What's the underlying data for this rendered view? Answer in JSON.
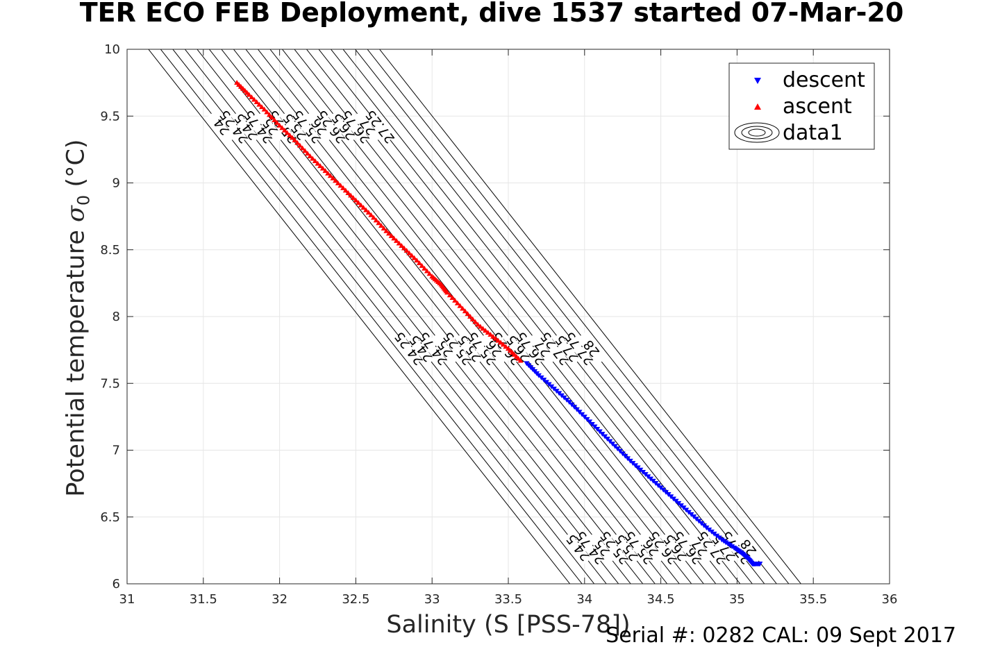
{
  "title": "TER ECO FEB Deployment, dive 1537 started 07-Mar-20",
  "footer": "Serial #: 0282  CAL: 09 Sept 2017",
  "chart_data": {
    "type": "scatter",
    "xlabel": "Salinity (S [PSS-78])",
    "ylabel_main": "Potential temperature ",
    "ylabel_symbol": "σ",
    "ylabel_sub": "0",
    "ylabel_unit": " (°C)",
    "xlim": [
      31,
      36
    ],
    "ylim": [
      6,
      10
    ],
    "xticks": [
      "31",
      "31.5",
      "32",
      "32.5",
      "33",
      "33.5",
      "34",
      "34.5",
      "35",
      "35.5",
      "36"
    ],
    "yticks": [
      "6",
      "6.5",
      "7",
      "7.5",
      "8",
      "8.5",
      "9",
      "9.5",
      "10"
    ],
    "grid": true,
    "legend": {
      "placement": "top-right",
      "entries": [
        "descent",
        "ascent",
        "data1"
      ]
    },
    "colors": {
      "descent": "#0000ff",
      "ascent": "#ff0000",
      "contour": "#000000",
      "grid": "#e6e6e6"
    },
    "series": [
      {
        "name": "descent",
        "marker": "triangle-down",
        "color": "#0000ff",
        "x": [
          33.62,
          33.7,
          33.8,
          33.9,
          34.0,
          34.1,
          34.2,
          34.3,
          34.4,
          34.5,
          34.6,
          34.7,
          34.8,
          34.9,
          34.98,
          35.03,
          35.07,
          35.1,
          35.12,
          35.15
        ],
        "y": [
          7.65,
          7.56,
          7.46,
          7.36,
          7.25,
          7.14,
          7.03,
          6.92,
          6.82,
          6.72,
          6.62,
          6.52,
          6.42,
          6.33,
          6.27,
          6.23,
          6.19,
          6.15,
          6.15,
          6.15
        ]
      },
      {
        "name": "ascent",
        "marker": "triangle-up",
        "color": "#ff0000",
        "x": [
          31.72,
          31.8,
          31.9,
          32.0,
          32.1,
          32.2,
          32.3,
          32.4,
          32.5,
          32.6,
          32.7,
          32.8,
          32.9,
          33.0,
          33.06,
          33.1,
          33.2,
          33.3,
          33.4,
          33.5,
          33.58
        ],
        "y": [
          9.75,
          9.66,
          9.55,
          9.43,
          9.32,
          9.2,
          9.09,
          8.98,
          8.87,
          8.76,
          8.64,
          8.53,
          8.42,
          8.3,
          8.24,
          8.18,
          8.06,
          7.94,
          7.85,
          7.76,
          7.67
        ]
      }
    ],
    "contours": {
      "levels": [
        24,
        24.25,
        24.5,
        24.75,
        25,
        25.25,
        25.5,
        25.75,
        26,
        26.25,
        26.5,
        26.75,
        27,
        27.25,
        27.5,
        27.75,
        28
      ],
      "labels_top": [
        "24",
        "24.25",
        "24.5",
        "24.75",
        "25",
        "25.25",
        "25.5",
        "25.75",
        "26",
        "26.25",
        "26.5",
        "26.75",
        "27",
        "27.25"
      ],
      "labels_mid": [
        "24.25",
        "24.5",
        "24.75",
        "25",
        "25.25",
        "25.5",
        "25.75",
        "26",
        "26.25",
        "26.5",
        "26.75",
        "27",
        "27.25",
        "27.5",
        "27.75",
        "28"
      ],
      "labels_bottom": [
        "24.5",
        "24.75",
        "25",
        "25.25",
        "25.5",
        "25.75",
        "26",
        "26.25",
        "26.5",
        "26.75",
        "27",
        "27.25",
        "27.5",
        "27.75",
        "28"
      ]
    }
  }
}
